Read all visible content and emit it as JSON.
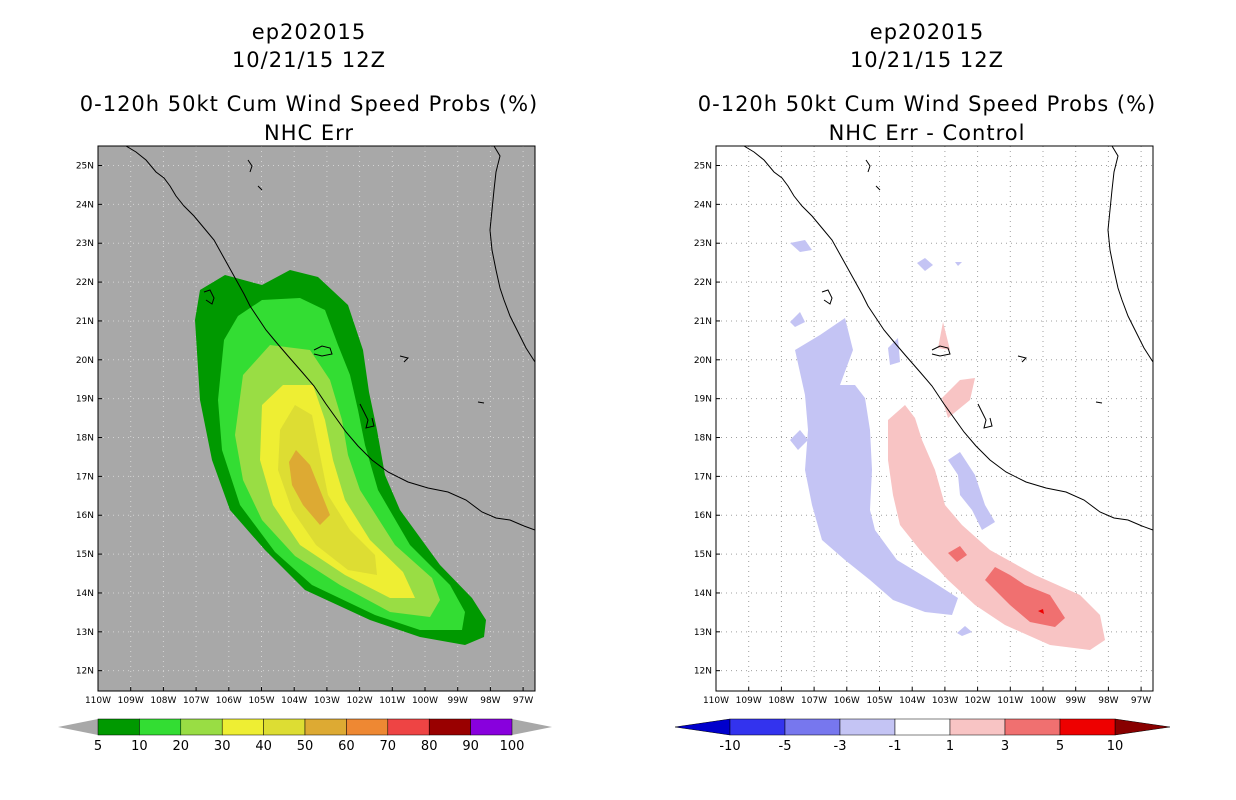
{
  "left_panel": {
    "title_line1": "ep202015",
    "title_line2": "10/21/15 12Z",
    "title_line3": "0-120h 50kt Cum Wind Speed Probs (%)",
    "title_line4": "NHC Err",
    "background_color": "#a8a8a8",
    "colorbar": {
      "labels": [
        "5",
        "10",
        "20",
        "30",
        "40",
        "50",
        "60",
        "70",
        "80",
        "90",
        "100"
      ],
      "colors": [
        "#009900",
        "#33dd33",
        "#99dd44",
        "#eeee33",
        "#dddd33",
        "#ddaa33",
        "#ee8833",
        "#ee4444",
        "#990000",
        "#8800dd"
      ],
      "extend_color": "#a8a8a8"
    }
  },
  "right_panel": {
    "title_line1": "ep202015",
    "title_line2": "10/21/15 12Z",
    "title_line3": "0-120h 50kt Cum Wind Speed Probs (%)",
    "title_line4": "NHC Err - Control",
    "background_color": "#ffffff",
    "colorbar": {
      "labels": [
        "-10",
        "-5",
        "-3",
        "-1",
        "1",
        "3",
        "5",
        "10"
      ],
      "colors": [
        "#0000cc",
        "#3333ee",
        "#7777ee",
        "#c4c4f4",
        "#ffffff",
        "#f8c4c4",
        "#f07070",
        "#ee0000",
        "#880000"
      ]
    }
  },
  "axes": {
    "lat_labels": [
      "25N",
      "24N",
      "23N",
      "22N",
      "21N",
      "20N",
      "19N",
      "18N",
      "17N",
      "16N",
      "15N",
      "14N",
      "13N",
      "12N"
    ],
    "lon_labels": [
      "110W",
      "109W",
      "108W",
      "107W",
      "106W",
      "105W",
      "104W",
      "103W",
      "102W",
      "101W",
      "100W",
      "99W",
      "98W",
      "97W"
    ]
  }
}
